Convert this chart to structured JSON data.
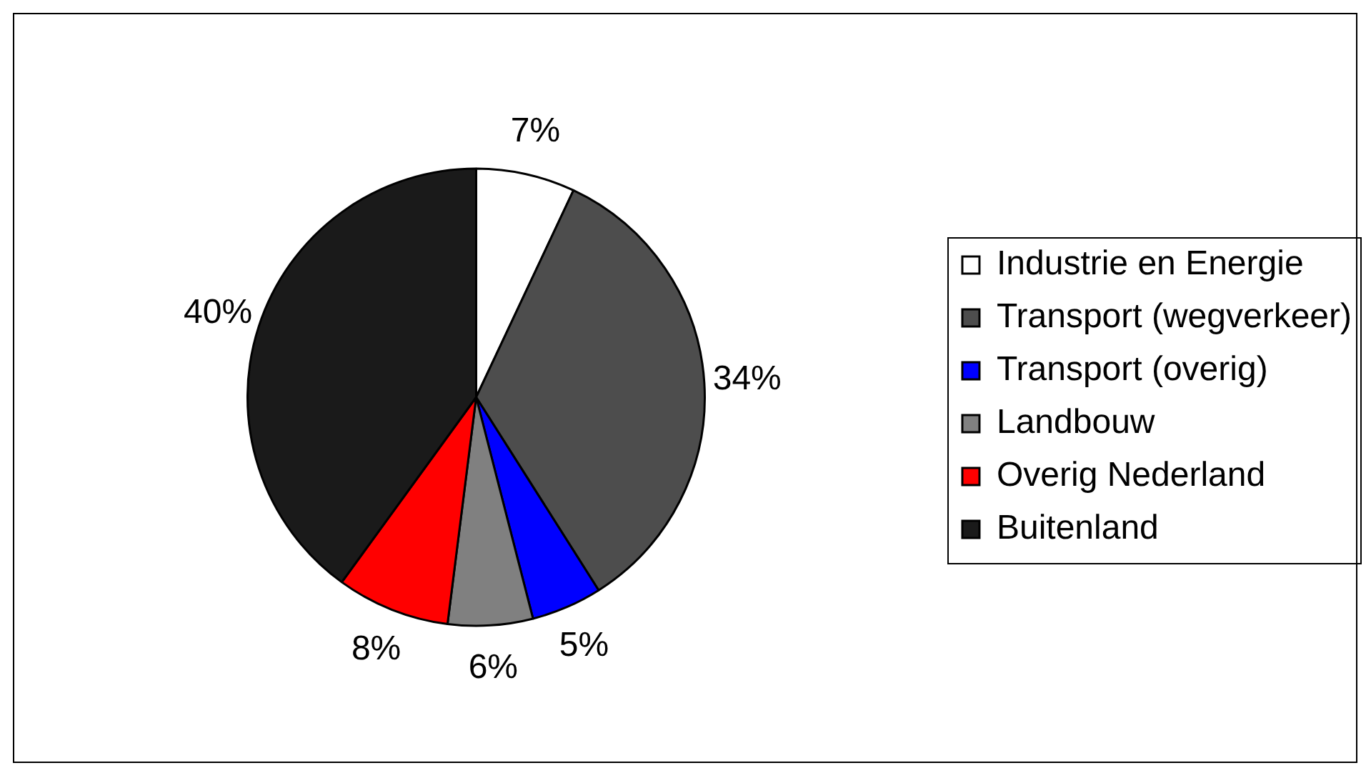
{
  "chart_data": {
    "type": "pie",
    "categories": [
      "Industrie en Energie",
      "Transport (wegverkeer)",
      "Transport (overig)",
      "Landbouw",
      "Overig Nederland",
      "Buitenland"
    ],
    "values": [
      7,
      34,
      5,
      6,
      8,
      40
    ],
    "colors": [
      "#ffffff",
      "#4d4d4d",
      "#0000ff",
      "#808080",
      "#ff0000",
      "#1a1a1a"
    ],
    "value_labels": [
      "7%",
      "34%",
      "5%",
      "6%",
      "8%",
      "40%"
    ],
    "legend": "right"
  }
}
